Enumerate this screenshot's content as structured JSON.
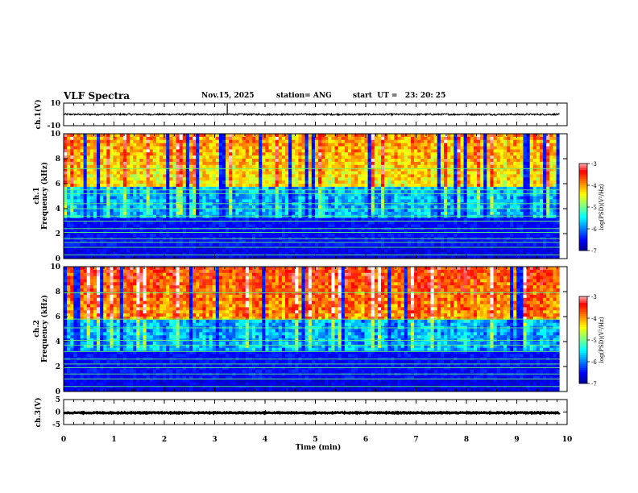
{
  "header": {
    "title": "VLF Spectra",
    "date": "Nov.15, 2025",
    "station": "station= ANG",
    "start": "start  UT =   23: 20: 25"
  },
  "chart_data": [
    {
      "id": "ch1-voltage",
      "type": "line",
      "ylabel": "ch.1(V)",
      "ylim": [
        -10,
        10
      ],
      "yticks": [
        "10",
        "-10"
      ],
      "baseline_value": 0,
      "noise_amplitude": 0.7,
      "spike_times_min": [
        3.25
      ]
    },
    {
      "id": "ch1-spectrogram",
      "type": "heatmap",
      "ylabel": "ch.1\nFrequency (kHz)",
      "ylabel_lines": [
        "ch.1",
        "Frequency (kHz)"
      ],
      "ylim": [
        0,
        10
      ],
      "yticks": [
        "0",
        "2",
        "4",
        "6",
        "8",
        "10"
      ],
      "colorbar": {
        "label": "log(PSD)(V²/Hz)",
        "range": [
          -7,
          -3
        ],
        "ticks": [
          "-3",
          "-4",
          "-5",
          "-6",
          "-7"
        ]
      },
      "constant_lines_khz": [
        0.3,
        0.9,
        1.3,
        1.6,
        2.1,
        2.4,
        3.0,
        3.4,
        4.0,
        4.4,
        5.2,
        5.5,
        7.2
      ],
      "intensity": "medium"
    },
    {
      "id": "ch2-spectrogram",
      "type": "heatmap",
      "ylabel": "ch.2\nFrequency (kHz)",
      "ylabel_lines": [
        "ch.2",
        "Frequency (kHz)"
      ],
      "ylim": [
        0,
        10
      ],
      "yticks": [
        "0",
        "2",
        "4",
        "6",
        "8",
        "10"
      ],
      "colorbar": {
        "label": "log(PSD)(V²/Hz)",
        "range": [
          -7,
          -3
        ],
        "ticks": [
          "-3",
          "-4",
          "-5",
          "-6",
          "-7"
        ]
      },
      "constant_lines_khz": [
        0.4,
        1.0,
        1.4,
        1.9,
        2.2,
        2.6,
        3.2,
        3.7,
        4.1,
        5.1,
        5.8,
        7.9
      ],
      "intensity": "high"
    },
    {
      "id": "ch3-voltage",
      "type": "line",
      "ylabel": "ch.3(V)",
      "ylim": [
        -5,
        5
      ],
      "yticks": [
        "5",
        "0",
        "-5"
      ],
      "baseline_value": -0.3,
      "noise_amplitude": 0.2,
      "spike_times_min": []
    }
  ],
  "x_axis": {
    "label": "Time  (min)",
    "range": [
      0,
      10
    ],
    "ticks": [
      "0",
      "1",
      "2",
      "3",
      "4",
      "5",
      "6",
      "7",
      "8",
      "9",
      "10"
    ],
    "data_end_min": 9.85
  },
  "colors": {
    "axis": "#000000",
    "colormap": [
      "#00008a",
      "#0000ff",
      "#0080ff",
      "#00ffff",
      "#80ff80",
      "#ffff00",
      "#ff8000",
      "#ff0000",
      "#ffffff"
    ]
  }
}
